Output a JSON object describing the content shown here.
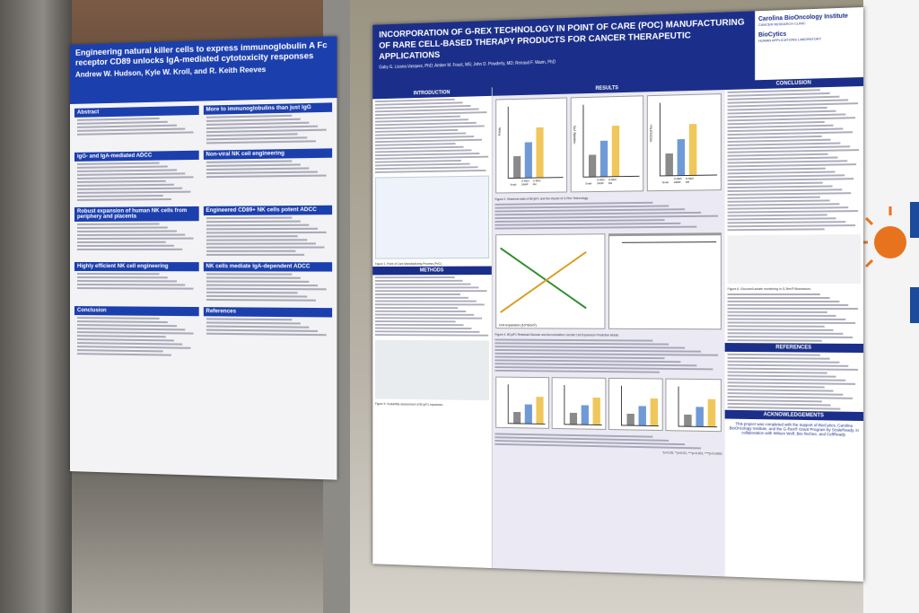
{
  "left_poster": {
    "title": "Engineering natural killer cells to express immunoglobulin A Fc receptor CD89 unlocks IgA-mediated cytotoxicity responses",
    "authors": "Andrew W. Hudson, Kyle W. Kroll, and R. Keith Reeves",
    "sections": [
      "Abstract",
      "More to immunoglobulins than just IgG",
      "IgG- and IgA-mediated ADCC",
      "Non-viral NK cell engineering",
      "Robust expansion of human NK cells from periphery and placenta",
      "Engineered CD89+ NK cells potent ADCC",
      "Highly efficient NK cell engineering",
      "NK cells mediate IgA-dependent ADCC",
      "Conclusion",
      "References"
    ]
  },
  "right_poster": {
    "title": "INCORPORATION OF G-REX TECHNOLOGY IN POINT OF CARE (POC) MANUFACTURING OF RARE CELL-BASED THERAPY PRODUCTS FOR CANCER THERAPEUTIC APPLICATIONS",
    "authors": "Gaby G. Lizana-Vasquez, PhD; Amber M. Foust, MS; John D. Powderly, MD; Renaud F. Warin, PhD",
    "logos": [
      "Carolina BioOncology Institute",
      "CANCER RESEARCH CLINIC",
      "BioCytics",
      "HUMAN APPLICATIONS LABORATORY"
    ],
    "sections": {
      "introduction": "INTRODUCTION",
      "results": "RESULTS",
      "conclusion": "CONCLUSION",
      "methods": "METHODS",
      "references": "REFERENCES",
      "acknowledgements": "ACKNOWLEDGEMENTS"
    },
    "chart_labels": {
      "y": [
        "Folds",
        "Viability (%)",
        "%CD107a+",
        "Cell expansion (10^6/cm²)"
      ],
      "x": [
        "Small",
        "G-REX 24WP",
        "G-REX 6M"
      ]
    },
    "captions": [
      "Figure 1. Point of Care Manufacturing Process (PoC).",
      "Figure 2. Historical data of BCyIF1 and the impact of G-Rex Technology.",
      "Figure 4. BCyIF1 Residual Glucose and Accumulative Lactate Cell Expansion Predictive Model.",
      "Figure 5. Scalability assessment of BCyIF1 expansion.",
      "Figure 6. Glucose/Lactate monitoring in G-Rex® Bioreactors."
    ],
    "significance": "*p<0.05, **p<0.01, ***p<0.001, ****p<0.0001",
    "acknowledgement_text": "This project was completed with the support of BioCytics, Carolina BioOncology Institute, and the G-Rex® Grant Program by ScaleReady, in collaboration with Wilson Wolf, Bio-Techne, and CellReady."
  }
}
